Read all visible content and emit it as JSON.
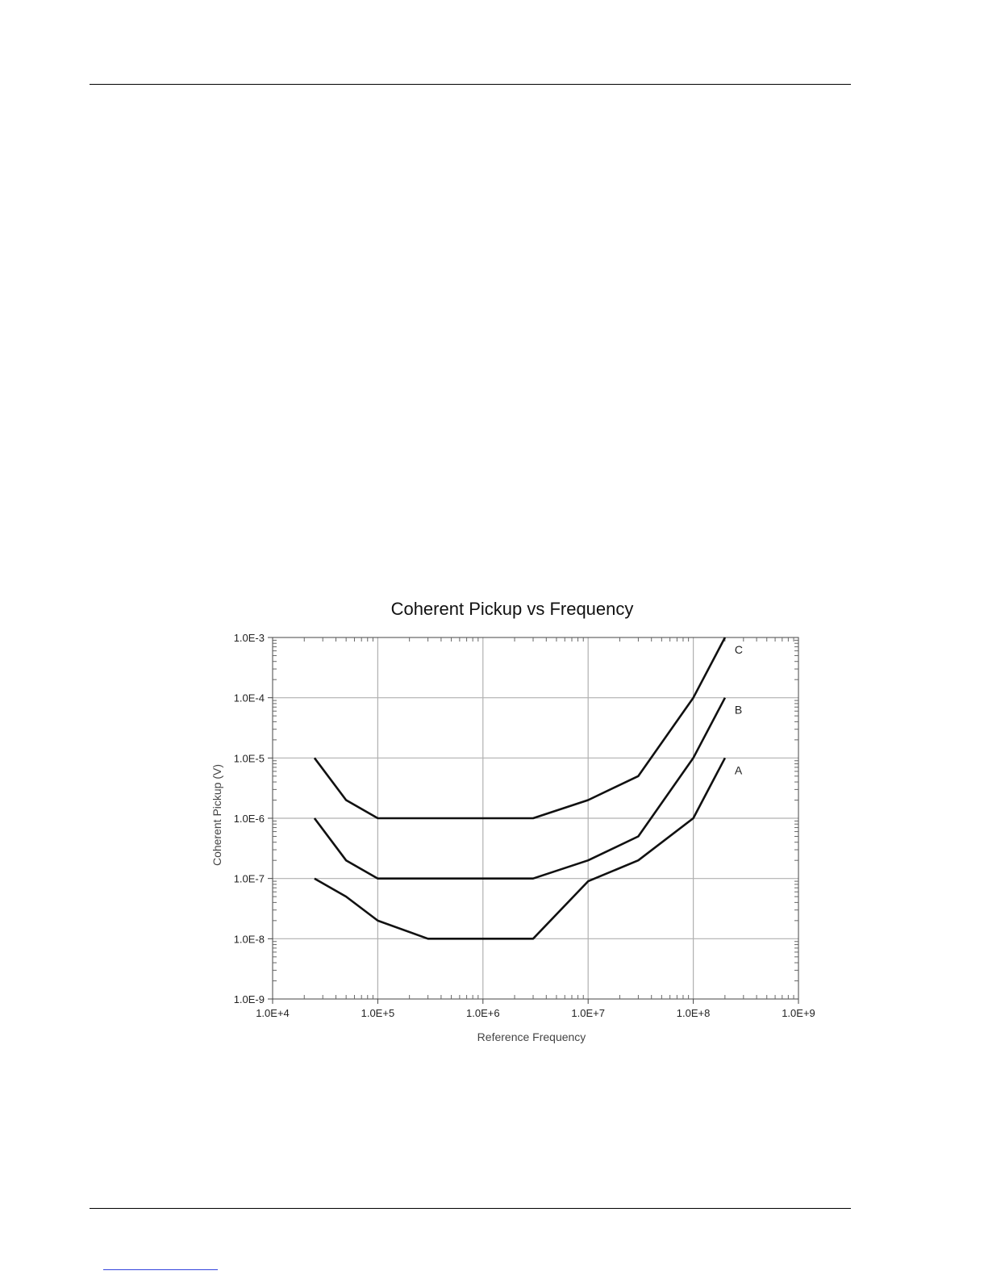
{
  "chart_data": {
    "type": "line",
    "title": "Coherent Pickup vs Frequency",
    "xlabel": "Reference Frequency",
    "ylabel": "Coherent Pickup (V)",
    "x_scale": "log",
    "y_scale": "log",
    "xlim": [
      10000,
      1000000000
    ],
    "ylim": [
      1e-09,
      0.001
    ],
    "grid": true,
    "x_tick_labels": [
      "1.0E+4",
      "1.0E+5",
      "1.0E+6",
      "1.0E+7",
      "1.0E+8",
      "1.0E+9"
    ],
    "y_tick_labels": [
      "1.0E-3",
      "1.0E-4",
      "1.0E-5",
      "1.0E-6",
      "1.0E-7",
      "1.0E-8",
      "1.0E-9"
    ],
    "series": [
      {
        "name": "A",
        "points": [
          [
            25000,
            1e-07
          ],
          [
            50000,
            5e-08
          ],
          [
            100000,
            2e-08
          ],
          [
            300000,
            1e-08
          ],
          [
            3000000,
            1e-08
          ],
          [
            10000000,
            9e-08
          ],
          [
            30000000,
            2e-07
          ],
          [
            100000000,
            1e-06
          ],
          [
            200000000,
            1e-05
          ]
        ]
      },
      {
        "name": "B",
        "points": [
          [
            25000,
            1e-06
          ],
          [
            50000,
            2e-07
          ],
          [
            100000,
            1e-07
          ],
          [
            3000000,
            1e-07
          ],
          [
            10000000,
            2e-07
          ],
          [
            30000000,
            5e-07
          ],
          [
            100000000,
            1e-05
          ],
          [
            200000000,
            0.0001
          ]
        ]
      },
      {
        "name": "C",
        "points": [
          [
            25000,
            1e-05
          ],
          [
            50000,
            2e-06
          ],
          [
            100000,
            1e-06
          ],
          [
            3000000,
            1e-06
          ],
          [
            10000000,
            2e-06
          ],
          [
            30000000,
            5e-06
          ],
          [
            100000000,
            0.0001
          ],
          [
            200000000,
            0.001
          ]
        ]
      }
    ]
  }
}
